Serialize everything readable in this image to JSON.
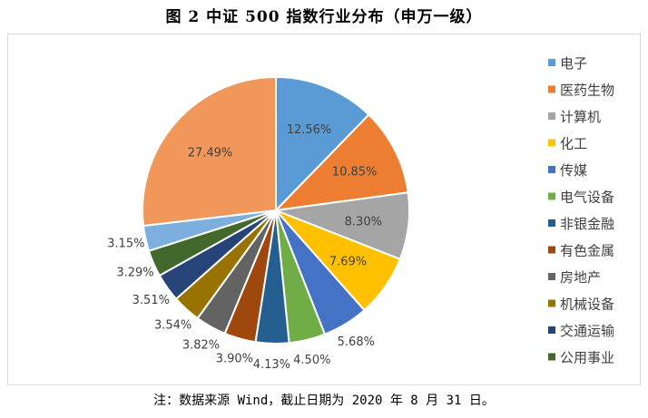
{
  "title": "图 2 中证 500 指数行业分布（申万一级）",
  "note": "注：数据来源 Wind，截止日期为 2020 年 8 月 31 日。",
  "chart_data": {
    "type": "pie",
    "title": "",
    "legend_position": "right",
    "slices": [
      {
        "label": "电子",
        "value": 12.56,
        "display": "12.56%",
        "color": "#5b9bd5"
      },
      {
        "label": "医药生物",
        "value": 10.85,
        "display": "10.85%",
        "color": "#ed7d31"
      },
      {
        "label": "计算机",
        "value": 8.3,
        "display": "8.30%",
        "color": "#a5a5a5"
      },
      {
        "label": "化工",
        "value": 7.69,
        "display": "7.69%",
        "color": "#ffc000"
      },
      {
        "label": "传媒",
        "value": 5.68,
        "display": "5.68%",
        "color": "#4472c4"
      },
      {
        "label": "电气设备",
        "value": 4.5,
        "display": "4.50%",
        "color": "#70ad47"
      },
      {
        "label": "非银金融",
        "value": 4.13,
        "display": "4.13%",
        "color": "#255e91"
      },
      {
        "label": "有色金属",
        "value": 3.9,
        "display": "3.90%",
        "color": "#9e480e"
      },
      {
        "label": "房地产",
        "value": 3.82,
        "display": "3.82%",
        "color": "#636363"
      },
      {
        "label": "机械设备",
        "value": 3.54,
        "display": "3.54%",
        "color": "#997300"
      },
      {
        "label": "交通运输",
        "value": 3.51,
        "display": "3.51%",
        "color": "#264478"
      },
      {
        "label": "公用事业",
        "value": 3.29,
        "display": "3.29%",
        "color": "#43682b"
      },
      {
        "label": "",
        "value": 3.15,
        "display": "3.15%",
        "color": "#7cafdd"
      },
      {
        "label": "",
        "value": 27.49,
        "display": "27.49%",
        "color": "#f1975a"
      }
    ]
  }
}
